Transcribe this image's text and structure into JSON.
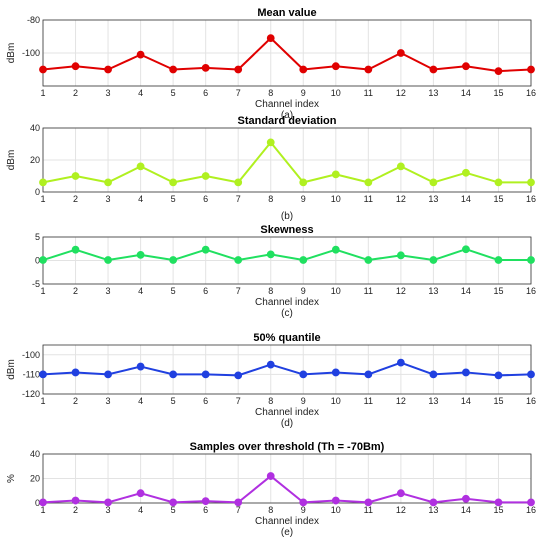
{
  "chart_data": [
    {
      "type": "line",
      "title": "Mean value",
      "xlabel": "Channel index",
      "ylabel": "dBm",
      "sublabel": "(a)",
      "x": [
        1,
        2,
        3,
        4,
        5,
        6,
        7,
        8,
        9,
        10,
        11,
        12,
        13,
        14,
        15,
        16
      ],
      "xlim": [
        1,
        16
      ],
      "ylim": [
        -120,
        -80
      ],
      "yticks": [
        -120,
        -100,
        -80
      ],
      "yticklabels": [
        "",
        "-100",
        "-80"
      ],
      "grid": true,
      "color": "#e00000",
      "series": [
        {
          "values": [
            -110,
            -108,
            -110,
            -101,
            -110,
            -109,
            -110,
            -91,
            -110,
            -108,
            -110,
            -100,
            -110,
            -108,
            -111,
            -110
          ]
        }
      ]
    },
    {
      "type": "line",
      "title": "Standard deviation",
      "xlabel": "",
      "ylabel": "dBm",
      "sublabel": "(b)",
      "x": [
        1,
        2,
        3,
        4,
        5,
        6,
        7,
        8,
        9,
        10,
        11,
        12,
        13,
        14,
        15,
        16
      ],
      "xlim": [
        1,
        16
      ],
      "ylim": [
        0,
        40
      ],
      "yticks": [
        0,
        20,
        40
      ],
      "yticklabels": [
        "0",
        "20",
        "40"
      ],
      "grid": true,
      "color": "#b0f020",
      "series": [
        {
          "values": [
            6,
            10,
            6,
            16,
            6,
            10,
            6,
            31,
            6,
            11,
            6,
            16,
            6,
            12,
            6,
            6
          ]
        }
      ]
    },
    {
      "type": "line",
      "title": "Skewness",
      "xlabel": "Channel index",
      "ylabel": "",
      "sublabel": "(c)",
      "x": [
        1,
        2,
        3,
        4,
        5,
        6,
        7,
        8,
        9,
        10,
        11,
        12,
        13,
        14,
        15,
        16
      ],
      "xlim": [
        1,
        16
      ],
      "ylim": [
        -5,
        5
      ],
      "yticks": [
        -5,
        0,
        5
      ],
      "yticklabels": [
        "-5",
        "0",
        "5"
      ],
      "grid": true,
      "color": "#20e060",
      "series": [
        {
          "values": [
            0.1,
            2.3,
            0.1,
            1.2,
            0.1,
            2.3,
            0.1,
            1.3,
            0.1,
            2.3,
            0.1,
            1.1,
            0.1,
            2.4,
            0.1,
            0.1
          ]
        }
      ]
    },
    {
      "type": "line",
      "title": "50% quantile",
      "xlabel": "Channel index",
      "ylabel": "dBm",
      "sublabel": "(d)",
      "x": [
        1,
        2,
        3,
        4,
        5,
        6,
        7,
        8,
        9,
        10,
        11,
        12,
        13,
        14,
        15,
        16
      ],
      "xlim": [
        1,
        16
      ],
      "ylim": [
        -120,
        -95
      ],
      "yticks": [
        -120,
        -110,
        -100
      ],
      "yticklabels": [
        "-120",
        "-110",
        "-100"
      ],
      "grid": true,
      "color": "#2040e0",
      "series": [
        {
          "values": [
            -110,
            -109,
            -110,
            -106,
            -110,
            -110,
            -110.5,
            -105,
            -110,
            -109,
            -110,
            -104,
            -110,
            -109,
            -110.5,
            -110
          ]
        }
      ]
    },
    {
      "type": "line",
      "title": "Samples over threshold (Th = -70Bm)",
      "xlabel": "Channel index",
      "ylabel": "%",
      "sublabel": "(e)",
      "x": [
        1,
        2,
        3,
        4,
        5,
        6,
        7,
        8,
        9,
        10,
        11,
        12,
        13,
        14,
        15,
        16
      ],
      "xlim": [
        1,
        16
      ],
      "ylim": [
        0,
        40
      ],
      "yticks": [
        0,
        20,
        40
      ],
      "yticklabels": [
        "0",
        "20",
        "40"
      ],
      "grid": true,
      "color": "#b030e0",
      "series": [
        {
          "values": [
            0.5,
            2,
            0.5,
            8,
            0.5,
            1.5,
            0.5,
            22,
            0.5,
            2,
            0.5,
            8,
            0.5,
            3.5,
            0.5,
            0.5
          ]
        }
      ]
    }
  ]
}
